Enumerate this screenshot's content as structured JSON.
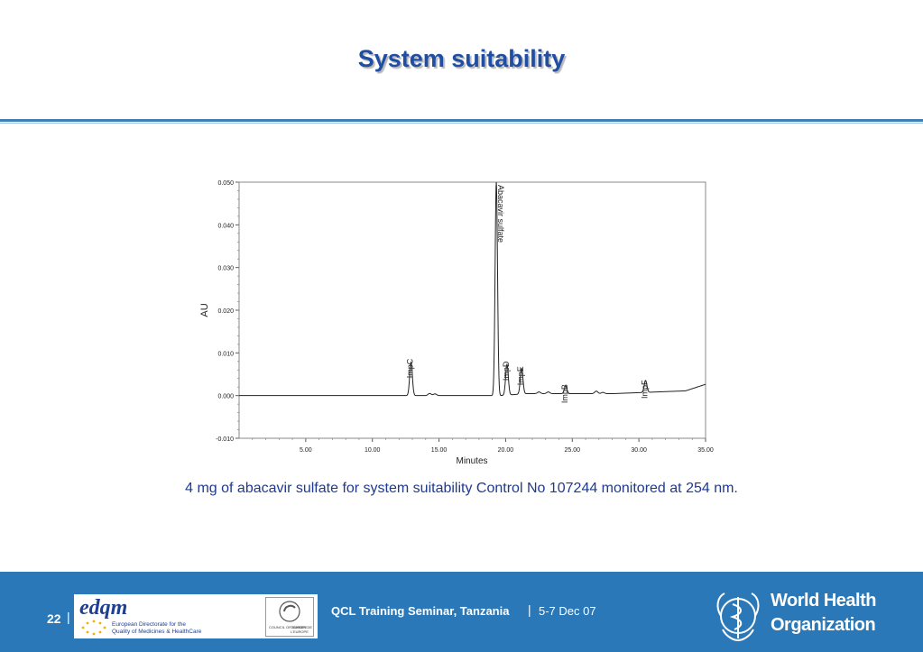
{
  "slide": {
    "title": "System suitability",
    "caption": "4 mg of abacavir sulfate for system suitability Control No 107244 monitored at 254 nm."
  },
  "footer": {
    "page_number": "22",
    "page_separator": "|",
    "seminar": "QCL Training Seminar, Tanzania",
    "separator": "|",
    "dates": "5-7 Dec 07",
    "edqm_logo": "edqm",
    "edqm_line1": "European Directorate for the",
    "edqm_line2": "Quality of Medicines & HealthCare",
    "coe_line1": "COUNCIL OF EUROPE",
    "coe_line2": "CONSEIL DE L'EUROPE",
    "who_line1": "World Health",
    "who_line2": "Organization",
    "who_icon": "who-emblem-icon",
    "coe_icon": "council-of-europe-icon"
  },
  "colors": {
    "title": "#1f4ea3",
    "footer_bg": "#2a78b8",
    "caption": "#1f3a8f"
  },
  "chart_data": {
    "type": "line",
    "xlabel": "Minutes",
    "ylabel": "AU",
    "xlim": [
      0,
      35
    ],
    "ylim": [
      -0.01,
      0.05
    ],
    "x_ticks": [
      5,
      10,
      15,
      20,
      25,
      30,
      35
    ],
    "x_tick_labels": [
      "5.00",
      "10.00",
      "15.00",
      "20.00",
      "25.00",
      "30.00",
      "35.00"
    ],
    "y_ticks": [
      -0.01,
      0,
      0.01,
      0.02,
      0.03,
      0.04,
      0.05
    ],
    "y_tick_labels": [
      "-0.010",
      "0.000",
      "0.010",
      "0.020",
      "0.030",
      "0.040",
      "0.050"
    ],
    "peaks": [
      {
        "label": "ImpC",
        "x": 12.9,
        "height": 0.0078
      },
      {
        "label": "Abacavir sulfate",
        "x": 19.3,
        "height": 0.05
      },
      {
        "label": "ImpD",
        "x": 20.1,
        "height": 0.0072
      },
      {
        "label": "ImpE",
        "x": 21.2,
        "height": 0.006
      },
      {
        "label": "ImpB",
        "x": 24.5,
        "height": 0.0018
      },
      {
        "label": "ImpF",
        "x": 30.5,
        "height": 0.0028
      }
    ],
    "minor_peaks": [
      {
        "x": 14.3,
        "height": 0.0005
      },
      {
        "x": 14.7,
        "height": 0.0004
      },
      {
        "x": 22.5,
        "height": 0.0004
      },
      {
        "x": 23.2,
        "height": 0.0004
      },
      {
        "x": 26.8,
        "height": 0.0006
      },
      {
        "x": 27.3,
        "height": 0.0003
      }
    ]
  }
}
